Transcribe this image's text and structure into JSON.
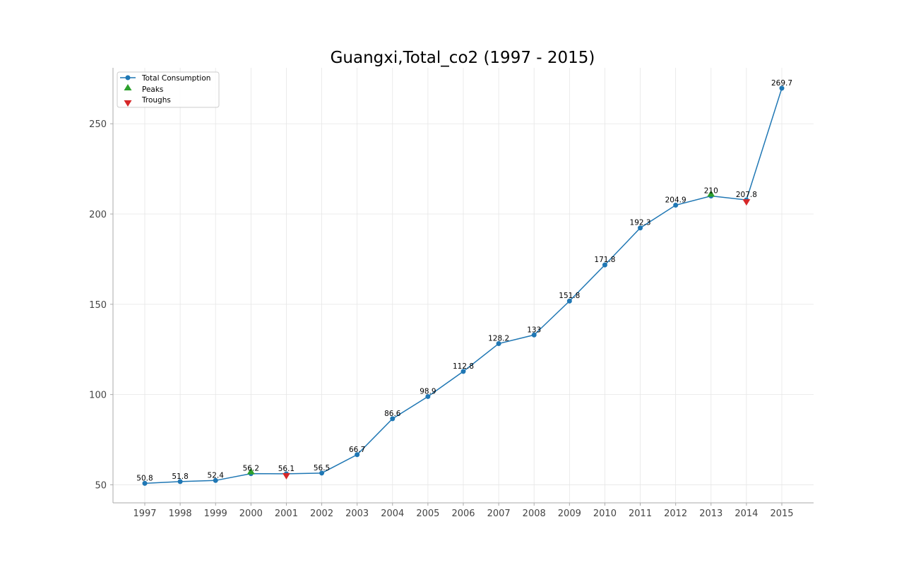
{
  "chart_data": {
    "type": "line",
    "title": "Guangxi,Total_co2 (1997 - 2015)",
    "xlabel": "",
    "ylabel": "",
    "x": [
      "1997",
      "1998",
      "1999",
      "2000",
      "2001",
      "2002",
      "2003",
      "2004",
      "2005",
      "2006",
      "2007",
      "2008",
      "2009",
      "2010",
      "2011",
      "2012",
      "2013",
      "2014",
      "2015"
    ],
    "series": [
      {
        "name": "Total Consumption",
        "color": "#1f77b4",
        "values": [
          50.8,
          51.8,
          52.4,
          56.2,
          56.1,
          56.5,
          66.7,
          86.6,
          98.9,
          112.8,
          128.2,
          133,
          151.8,
          171.8,
          192.3,
          204.9,
          210,
          207.8,
          269.7
        ],
        "labels": [
          "50.8",
          "51.8",
          "52.4",
          "56.2",
          "56.1",
          "56.5",
          "66.7",
          "86.6",
          "98.9",
          "112.8",
          "128.2",
          "133",
          "151.8",
          "171.8",
          "192.3",
          "204.9",
          "210",
          "207.8",
          "269.7"
        ]
      }
    ],
    "peaks": {
      "name": "Peaks",
      "color": "#2ca02c",
      "x": [
        "2000",
        "2013"
      ],
      "values": [
        56.2,
        210
      ]
    },
    "troughs": {
      "name": "Troughs",
      "color": "#d62728",
      "x": [
        "2001",
        "2014"
      ],
      "values": [
        56.1,
        207.8
      ]
    },
    "ylim": [
      40,
      281
    ],
    "yticks": [
      50,
      100,
      150,
      200,
      250
    ],
    "grid": true,
    "legend_position": "top-left"
  }
}
